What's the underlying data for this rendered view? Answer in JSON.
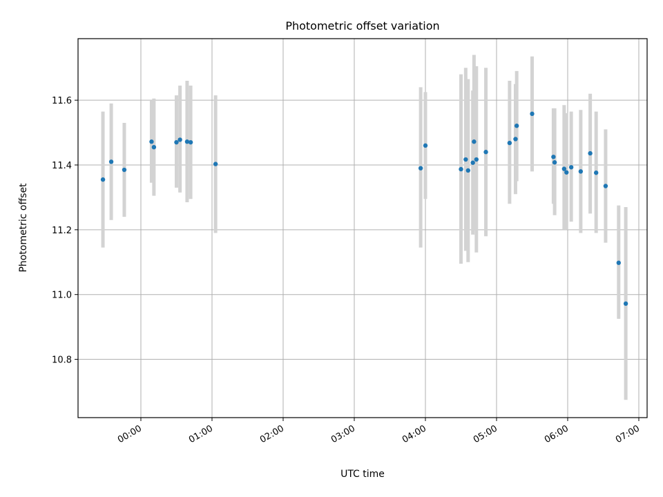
{
  "chart_data": {
    "type": "scatter",
    "title": "Photometric offset variation",
    "xlabel": "UTC time",
    "ylabel": "Photometric offset",
    "xlim": [
      "-0:53",
      "07:07"
    ],
    "ylim": [
      10.62,
      11.79
    ],
    "x_ticks": [
      "00:00",
      "01:00",
      "02:00",
      "03:00",
      "04:00",
      "05:00",
      "06:00",
      "07:00"
    ],
    "y_ticks": [
      "10.8",
      "11.0",
      "11.2",
      "11.4",
      "11.6"
    ],
    "grid": true,
    "marker_color": "#1f77b4",
    "errorbar_color": "#d3d3d3",
    "series": [
      {
        "points": [
          {
            "t": "-0:32",
            "y": 11.355,
            "lo": 11.145,
            "hi": 11.565
          },
          {
            "t": "-0:25",
            "y": 11.41,
            "lo": 11.23,
            "hi": 11.59
          },
          {
            "t": "-0:14",
            "y": 11.385,
            "lo": 11.24,
            "hi": 11.53
          },
          {
            "t": "00:09",
            "y": 11.472,
            "lo": 11.345,
            "hi": 11.6
          },
          {
            "t": "00:11",
            "y": 11.455,
            "lo": 11.305,
            "hi": 11.605
          },
          {
            "t": "00:30",
            "y": 11.47,
            "lo": 11.33,
            "hi": 11.615
          },
          {
            "t": "00:33",
            "y": 11.478,
            "lo": 11.315,
            "hi": 11.645
          },
          {
            "t": "00:39",
            "y": 11.472,
            "lo": 11.285,
            "hi": 11.66
          },
          {
            "t": "00:42",
            "y": 11.47,
            "lo": 11.295,
            "hi": 11.645
          },
          {
            "t": "01:03",
            "y": 11.403,
            "lo": 11.19,
            "hi": 11.615
          },
          {
            "t": "03:56",
            "y": 11.39,
            "lo": 11.145,
            "hi": 11.64
          },
          {
            "t": "04:00",
            "y": 11.46,
            "lo": 11.295,
            "hi": 11.625
          },
          {
            "t": "04:30",
            "y": 11.387,
            "lo": 11.095,
            "hi": 11.68
          },
          {
            "t": "04:34",
            "y": 11.417,
            "lo": 11.135,
            "hi": 11.7
          },
          {
            "t": "04:36",
            "y": 11.383,
            "lo": 11.1,
            "hi": 11.665
          },
          {
            "t": "04:40",
            "y": 11.407,
            "lo": 11.185,
            "hi": 11.63
          },
          {
            "t": "04:41",
            "y": 11.472,
            "lo": 11.2,
            "hi": 11.74
          },
          {
            "t": "04:43",
            "y": 11.417,
            "lo": 11.13,
            "hi": 11.705
          },
          {
            "t": "04:51",
            "y": 11.44,
            "lo": 11.18,
            "hi": 11.7
          },
          {
            "t": "05:11",
            "y": 11.468,
            "lo": 11.28,
            "hi": 11.66
          },
          {
            "t": "05:16",
            "y": 11.48,
            "lo": 11.31,
            "hi": 11.65
          },
          {
            "t": "05:17",
            "y": 11.521,
            "lo": 11.35,
            "hi": 11.69
          },
          {
            "t": "05:30",
            "y": 11.558,
            "lo": 11.38,
            "hi": 11.735
          },
          {
            "t": "05:48",
            "y": 11.425,
            "lo": 11.28,
            "hi": 11.575
          },
          {
            "t": "05:49",
            "y": 11.408,
            "lo": 11.245,
            "hi": 11.575
          },
          {
            "t": "05:57",
            "y": 11.388,
            "lo": 11.2,
            "hi": 11.585
          },
          {
            "t": "05:59",
            "y": 11.377,
            "lo": 11.2,
            "hi": 11.56
          },
          {
            "t": "06:03",
            "y": 11.393,
            "lo": 11.225,
            "hi": 11.565
          },
          {
            "t": "06:11",
            "y": 11.38,
            "lo": 11.19,
            "hi": 11.57
          },
          {
            "t": "06:19",
            "y": 11.436,
            "lo": 11.25,
            "hi": 11.62
          },
          {
            "t": "06:24",
            "y": 11.376,
            "lo": 11.19,
            "hi": 11.565
          },
          {
            "t": "06:32",
            "y": 11.335,
            "lo": 11.16,
            "hi": 11.51
          },
          {
            "t": "06:43",
            "y": 11.098,
            "lo": 10.925,
            "hi": 11.275
          },
          {
            "t": "06:49",
            "y": 10.972,
            "lo": 10.675,
            "hi": 11.27
          }
        ]
      }
    ]
  }
}
